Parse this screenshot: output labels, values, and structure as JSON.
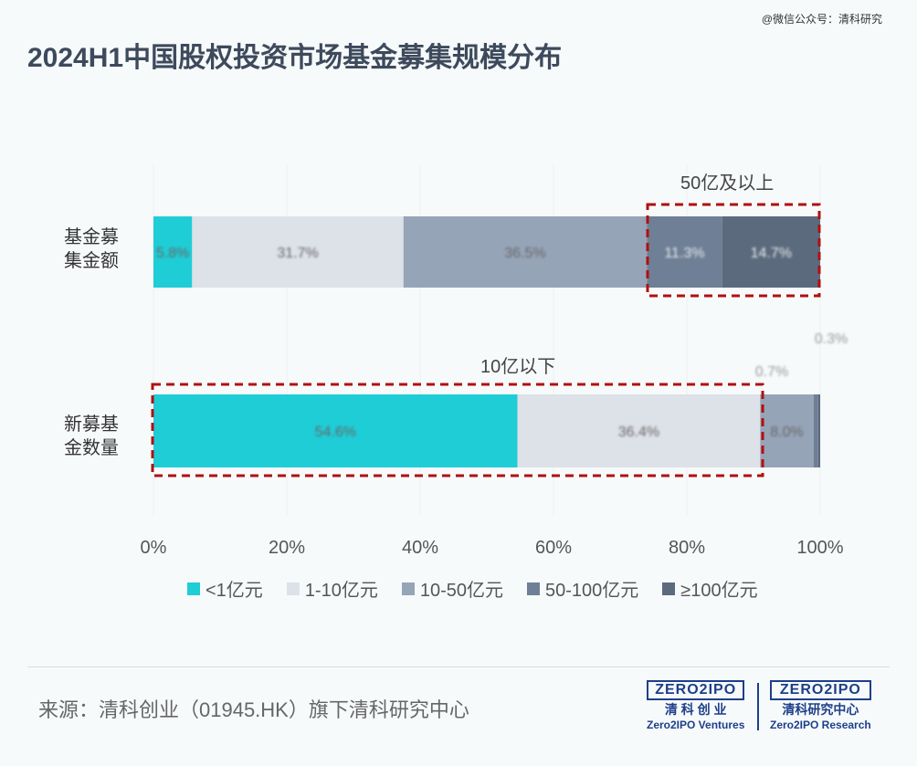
{
  "title": "2024H1中国股权投资市场基金募集规模分布",
  "watermark": "@微信公众号：清科研究",
  "source": "来源：清科创业（01945.HK）旗下清科研究中心",
  "logos": [
    {
      "mark": "ZERO2IPO",
      "cn": "清 科 创 业",
      "en": "Zero2IPO Ventures"
    },
    {
      "mark": "ZERO2IPO",
      "cn": "清科研究中心",
      "en": "Zero2IPO Research"
    }
  ],
  "chart_data": {
    "type": "bar",
    "orientation": "horizontal",
    "stacked": true,
    "categories": [
      "基金募集金额",
      "新募基金数量"
    ],
    "category_lines": [
      [
        "基金募",
        "集金额"
      ],
      [
        "新募基",
        "金数量"
      ]
    ],
    "series": [
      {
        "name": "<1亿元",
        "color": "#1fcdd6",
        "values": [
          5.8,
          54.6
        ]
      },
      {
        "name": "1-10亿元",
        "color": "#dde1e8",
        "values": [
          31.7,
          36.4
        ]
      },
      {
        "name": "10-50亿元",
        "color": "#96a4b8",
        "values": [
          36.5,
          8.0
        ]
      },
      {
        "name": "50-100亿元",
        "color": "#6f7f95",
        "values": [
          11.3,
          0.7
        ]
      },
      {
        "name": "≥100亿元",
        "color": "#5c6a7d",
        "values": [
          14.7,
          0.3
        ]
      }
    ],
    "xlim": [
      0,
      100
    ],
    "xticks": [
      "0%",
      "20%",
      "40%",
      "60%",
      "80%",
      "100%"
    ],
    "legend": "bottom",
    "grid": true,
    "annotations": [
      "50亿及以上",
      "10亿以下"
    ],
    "highlight_color": "#b01010"
  }
}
